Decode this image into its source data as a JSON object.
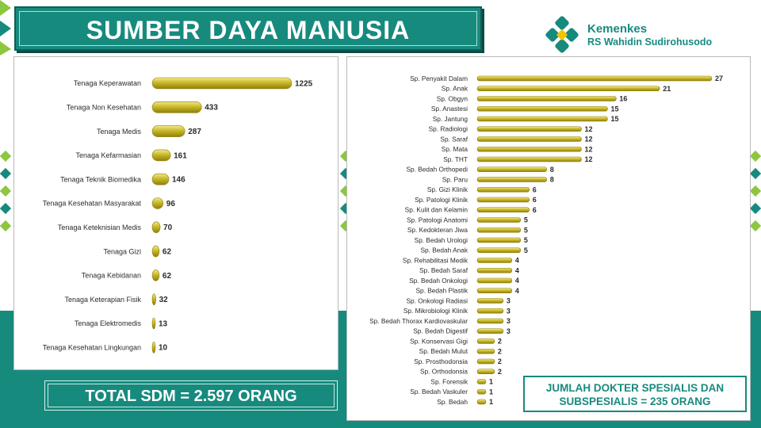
{
  "header": {
    "title": "SUMBER DAYA MANUSIA",
    "logo_name": "Kemenkes",
    "logo_subtitle": "RS Wahidin Sudirohusodo"
  },
  "colors": {
    "teal": "#178a7e",
    "bar_gold": "#c9b82a",
    "bar_dark": "#8f7f0c",
    "bar_light": "#f2ea8a",
    "logo_accent": "#f3c300"
  },
  "chart_data": [
    {
      "type": "bar",
      "orientation": "horizontal",
      "categories": [
        "Tenaga Keperawatan",
        "Tenaga Non Kesehatan",
        "Tenaga Medis",
        "Tenaga Kefarmasian",
        "Tenaga Teknik Biomedika",
        "Tenaga Kesehatan Masyarakat",
        "Tenaga Keteknisian Medis",
        "Tenaga Gizi",
        "Tenaga Kebidanan",
        "Tenaga Keterapian Fisik",
        "Tenaga Elektromedis",
        "Tenaga Kesehatan Lingkungan"
      ],
      "values": [
        1225,
        433,
        287,
        161,
        146,
        96,
        70,
        62,
        62,
        32,
        13,
        10
      ],
      "labels": [
        "1225",
        "433",
        "287",
        "161",
        "146",
        "96",
        "70",
        "62",
        "62",
        "32",
        "13",
        "10"
      ],
      "xlim": [
        0,
        1225
      ],
      "grid": false
    },
    {
      "type": "bar",
      "orientation": "horizontal",
      "categories": [
        "Sp. Penyakit Dalam",
        "Sp. Anak",
        "Sp. Obgyn",
        "Sp. Anastesi",
        "Sp. Jantung",
        "Sp. Radiologi",
        "Sp. Saraf",
        "Sp. Mata",
        "Sp. THT",
        "Sp. Bedah Orthopedi",
        "Sp. Paru",
        "Sp. Gizi Klinik",
        "Sp. Patologi Klinik",
        "Sp. Kulit dan Kelamin",
        "Sp. Patologi Anatomi",
        "Sp. Kedokteran Jiwa",
        "Sp. Bedah Urologi",
        "Sp. Bedah Anak",
        "Sp. Rehabilitasi Medik",
        "Sp. Bedah Saraf",
        "Sp. Bedah Onkologi",
        "Sp. Bedah Plastik",
        "Sp. Onkologi Radiasi",
        "Sp. Mikrobiologi Klinik",
        "Sp. Bedah Thorax Kardiovaskular",
        "Sp. Bedah Digestif",
        "Sp. Konservasi Gigi",
        "Sp. Bedah Mulut",
        "Sp. Prosthodonsia",
        "Sp. Orthodonsia",
        "Sp. Forensik",
        "Sp. Bedah Vaskuler",
        "Sp. Bedah"
      ],
      "values": [
        27,
        21,
        16,
        15,
        15,
        12,
        12,
        12,
        12,
        8,
        8,
        6,
        6,
        6,
        5,
        5,
        5,
        5,
        4,
        4,
        4,
        4,
        3,
        3,
        3,
        3,
        2,
        2,
        2,
        2,
        1,
        1,
        1
      ],
      "labels": [
        "27",
        "21",
        "16",
        "15",
        "15",
        "12",
        "12",
        "12",
        "12",
        "8",
        "8",
        "6",
        "6",
        "6",
        "5",
        "5",
        "5",
        "5",
        "4",
        "4",
        "4",
        "4",
        "3",
        "3",
        "3",
        "3",
        "2",
        "2",
        "2",
        "2",
        "1",
        "1",
        "1"
      ],
      "xlim": [
        0,
        27
      ],
      "grid": false
    }
  ],
  "footer": {
    "total": "TOTAL SDM = 2.597 ORANG",
    "specialist_line1": "JUMLAH DOKTER SPESIALIS DAN",
    "specialist_line2": "SUBSPESIALIS = 235 ORANG"
  }
}
